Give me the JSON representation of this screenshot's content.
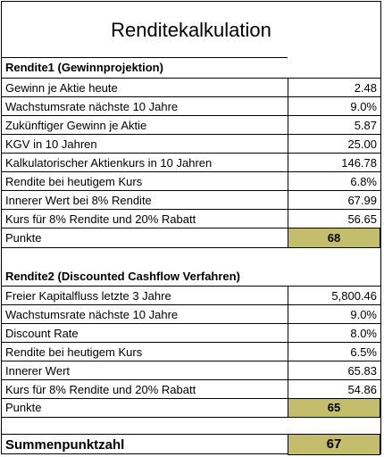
{
  "title": "Renditekalkulation",
  "section1": {
    "header": "Rendite1 (Gewinnprojektion)",
    "rows": [
      {
        "label": "Gewinn je Aktie heute",
        "value": "2.48"
      },
      {
        "label": "Wachstumsrate nächste 10 Jahre",
        "value": "9.0%"
      },
      {
        "label": "Zukünftiger Gewinn je Aktie",
        "value": "5.87"
      },
      {
        "label": "KGV in 10 Jahren",
        "value": "25.00"
      },
      {
        "label": "Kalkulatorischer Aktienkurs in 10 Jahren",
        "value": "146.78"
      },
      {
        "label": "Rendite bei heutigem Kurs",
        "value": "6.8%"
      },
      {
        "label": "Innerer Wert bei 8% Rendite",
        "value": "67.99"
      },
      {
        "label": "Kurs für 8% Rendite und 20% Rabatt",
        "value": "56.65"
      }
    ],
    "score_label": "Punkte",
    "score_value": "68"
  },
  "section2": {
    "header": "Rendite2 (Discounted Cashflow Verfahren)",
    "rows": [
      {
        "label": "Freier Kapitalfluss letzte 3 Jahre",
        "value": "5,800.46"
      },
      {
        "label": "Wachstumsrate nächste 10 Jahre",
        "value": "9.0%"
      },
      {
        "label": "Discount Rate",
        "value": "8.0%"
      },
      {
        "label": "Rendite bei heutigem Kurs",
        "value": "6.5%"
      },
      {
        "label": "Innerer Wert",
        "value": "65.83"
      },
      {
        "label": "Kurs für 8% Rendite und 20% Rabatt",
        "value": "54.86"
      }
    ],
    "score_label": "Punkte",
    "score_value": "65"
  },
  "total": {
    "label": "Summenpunktzahl",
    "value": "67"
  },
  "colors": {
    "score_fill": "#c4bd6c"
  }
}
